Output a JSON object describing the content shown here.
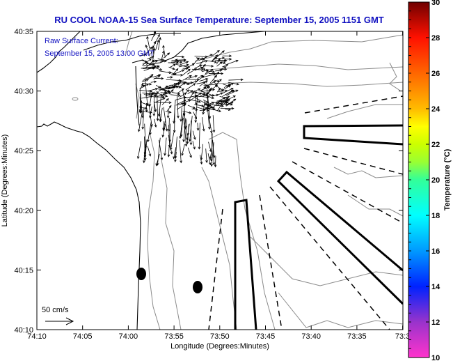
{
  "title": "RU COOL  NOAA-15  Sea Surface Temperature:  September 15, 2005 1151 GMT",
  "annotation": {
    "line1": "Raw Surface Current:",
    "line2": "September 15, 2005 13:00 GMT"
  },
  "scale_label": "50 cm/s",
  "x_axis": {
    "label": "Longitude (Degrees:Minutes)",
    "ticks": [
      "74:10",
      "74:05",
      "74:00",
      "73:55",
      "73:50",
      "73:45",
      "73:40",
      "73:35",
      "73:3"
    ]
  },
  "y_axis": {
    "label": "Latitude (Degrees:Minutes)",
    "ticks": [
      "40:35",
      "40:30",
      "40:25",
      "40:20",
      "40:15",
      "40:10"
    ]
  },
  "colorbar": {
    "label": "Temperature (°C)",
    "range": [
      10,
      30
    ],
    "ticks": [
      "10",
      "12",
      "14",
      "16",
      "18",
      "20",
      "22",
      "24",
      "26",
      "28",
      "30"
    ],
    "colors": {
      "10": "#ff33cc",
      "12": "#9933cc",
      "12.4": "#3333cc",
      "14": "#0022ff",
      "16": "#0099ff",
      "18": "#00ffff",
      "20": "#33ff99",
      "21": "#99ff33",
      "22": "#ccff00",
      "23": "#ffff00",
      "24": "#ffbb00",
      "26": "#ff6600",
      "28": "#ff1100",
      "30": "#700000"
    }
  }
}
